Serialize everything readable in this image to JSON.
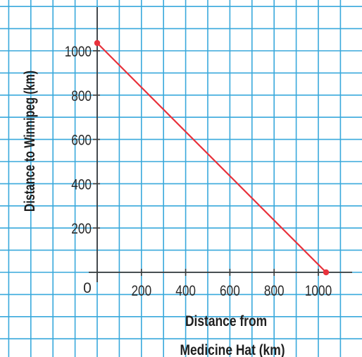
{
  "chart_data": {
    "type": "line",
    "title": "",
    "xlabel_line1": "Distance from",
    "xlabel_line2": "Medicine Hat (km)",
    "ylabel": "Distance to Winnipeg (km)",
    "origin_label": "0",
    "x_ticks": [
      200,
      400,
      600,
      800,
      1000
    ],
    "y_ticks": [
      200,
      400,
      600,
      800,
      1000
    ],
    "xlim": [
      0,
      1050
    ],
    "ylim": [
      0,
      1050
    ],
    "grid": true,
    "series": [
      {
        "points": [
          {
            "x": 0,
            "y": 1035
          },
          {
            "x": 1035,
            "y": 0
          }
        ]
      }
    ],
    "colors": {
      "grid": "#39a9dc",
      "line": "#e8323c",
      "axis": "#3c3c3c"
    }
  }
}
